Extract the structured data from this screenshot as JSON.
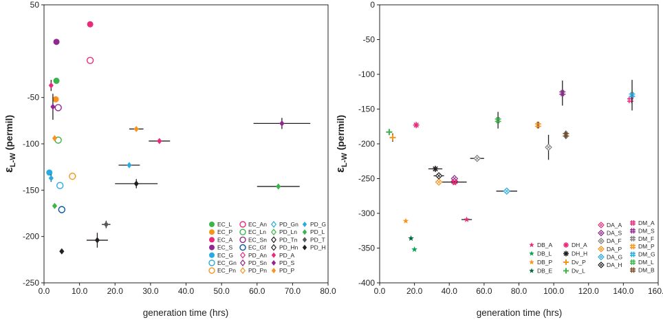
{
  "chart_data": [
    {
      "type": "scatter",
      "title": "",
      "xlabel": "generation time (hrs)",
      "ylabel_main": "ε",
      "ylabel_sub": "L-W",
      "ylabel_rest": " (permil)",
      "xlim": [
        0,
        80
      ],
      "ylim": [
        -250,
        50
      ],
      "x_ticks": [
        0,
        10,
        20,
        30,
        40,
        50,
        60,
        70,
        80
      ],
      "x_tick_labels": [
        "0.0",
        "10.0",
        "20.0",
        "30.0",
        "40.0",
        "50.0",
        "60.0",
        "70.0",
        "80.0"
      ],
      "y_ticks": [
        50,
        -50,
        -100,
        -150,
        -200,
        -250
      ],
      "y_tick_labels": [
        "50",
        "-50",
        "-100",
        "-150",
        "-200",
        "-250"
      ],
      "legend_position": "bottom-right",
      "series": [
        {
          "name": "EC_L",
          "marker": "circle",
          "color": "#39b54a",
          "points": [
            {
              "x": 3.5,
              "y": -32
            }
          ]
        },
        {
          "name": "EC_P",
          "marker": "circle",
          "color": "#f7941d",
          "points": [
            {
              "x": 3.3,
              "y": -52
            }
          ]
        },
        {
          "name": "EC_A",
          "marker": "circle",
          "color": "#ec2a7a",
          "points": [
            {
              "x": 13.0,
              "y": 29
            }
          ]
        },
        {
          "name": "EC_S",
          "marker": "circle",
          "color": "#92278f",
          "points": [
            {
              "x": 3.5,
              "y": 10
            }
          ]
        },
        {
          "name": "EC_G",
          "marker": "circle",
          "color": "#29abe2",
          "points": [
            {
              "x": 1.5,
              "y": -131
            }
          ]
        },
        {
          "name": "EC_Gn",
          "marker": "open-circle",
          "color": "#29abe2",
          "points": [
            {
              "x": 4.5,
              "y": -145
            }
          ]
        },
        {
          "name": "EC_Pn",
          "marker": "open-circle",
          "color": "#f7941d",
          "points": [
            {
              "x": 8.0,
              "y": -135
            }
          ]
        },
        {
          "name": "EC_An",
          "marker": "open-circle",
          "color": "#ec2a7a",
          "points": [
            {
              "x": 13.0,
              "y": -10
            }
          ]
        },
        {
          "name": "EC_Ln",
          "marker": "open-circle",
          "color": "#39b54a",
          "points": [
            {
              "x": 4.0,
              "y": -96
            }
          ]
        },
        {
          "name": "EC_Sn",
          "marker": "open-circle",
          "color": "#92278f",
          "points": [
            {
              "x": 4.0,
              "y": -61
            }
          ]
        },
        {
          "name": "EC_Gf",
          "marker": "open-circle",
          "color": "#0054a6",
          "points": [
            {
              "x": 5.0,
              "y": -171
            }
          ]
        },
        {
          "name": "PD_An",
          "marker": "open-diamond",
          "color": "#ec2a7a",
          "points": []
        },
        {
          "name": "PD_Sn",
          "marker": "open-diamond",
          "color": "#92278f",
          "points": []
        },
        {
          "name": "PD_Pn",
          "marker": "open-diamond",
          "color": "#f7941d",
          "points": []
        },
        {
          "name": "PD_Gn",
          "marker": "open-diamond",
          "color": "#29abe2",
          "points": []
        },
        {
          "name": "PD_Ln",
          "marker": "open-diamond",
          "color": "#39b54a",
          "points": []
        },
        {
          "name": "PD_Tn",
          "marker": "open-diamond",
          "color": "#231f20",
          "points": []
        },
        {
          "name": "PD_Hn",
          "marker": "open-diamond",
          "color": "#231f20",
          "points": []
        },
        {
          "name": "PD_A",
          "marker": "diamond",
          "color": "#ec2a7a",
          "points": [
            {
              "x": 2.0,
              "y": -37,
              "yerr": 6
            },
            {
              "x": 32.5,
              "y": -97,
              "xerr": 3
            }
          ]
        },
        {
          "name": "PD_S",
          "marker": "diamond",
          "color": "#92278f",
          "points": [
            {
              "x": 2.5,
              "y": -60,
              "yerr": 14
            },
            {
              "x": 67.0,
              "y": -78,
              "xerr": 8,
              "yerr": 6
            }
          ]
        },
        {
          "name": "PD_P",
          "marker": "diamond",
          "color": "#f7941d",
          "points": [
            {
              "x": 3.0,
              "y": -94,
              "yerr": 3
            },
            {
              "x": 26.0,
              "y": -84,
              "xerr": 2
            }
          ]
        },
        {
          "name": "PD_G",
          "marker": "diamond",
          "color": "#29abe2",
          "points": [
            {
              "x": 2.0,
              "y": -137,
              "yerr": 4
            },
            {
              "x": 24.0,
              "y": -123,
              "xerr": 3
            }
          ]
        },
        {
          "name": "PD_L",
          "marker": "diamond",
          "color": "#39b54a",
          "points": [
            {
              "x": 3.0,
              "y": -167
            },
            {
              "x": 66.0,
              "y": -146,
              "xerr": 6
            }
          ]
        },
        {
          "name": "PD_T",
          "marker": "diamond",
          "color": "#595959",
          "points": [
            {
              "x": 17.5,
              "y": -187,
              "xerr": 1.2,
              "yerr": 4
            }
          ]
        },
        {
          "name": "PD_H",
          "marker": "diamond",
          "color": "#231f20",
          "points": [
            {
              "x": 5.0,
              "y": -216
            },
            {
              "x": 26.0,
              "y": -143,
              "xerr": 6,
              "yerr": 5
            },
            {
              "x": 15.0,
              "y": -204,
              "xerr": 3,
              "yerr": 8
            }
          ]
        }
      ]
    },
    {
      "type": "scatter",
      "title": "",
      "xlabel": "generation time (hrs)",
      "ylabel_main": "ε",
      "ylabel_sub": "L-W",
      "ylabel_rest": " (permil)",
      "xlim": [
        0,
        160
      ],
      "ylim": [
        -400,
        0
      ],
      "x_ticks": [
        0,
        20,
        40,
        60,
        80,
        100,
        120,
        140,
        160
      ],
      "x_tick_labels": [
        "0.0",
        "20.0",
        "40.0",
        "60.0",
        "80.0",
        "100.0",
        "120.0",
        "140.0",
        "160.0"
      ],
      "y_ticks": [
        0,
        -50,
        -100,
        -150,
        -200,
        -250,
        -300,
        -350,
        -400
      ],
      "y_tick_labels": [
        "0",
        "-50",
        "-100",
        "-150",
        "-200",
        "-250",
        "-300",
        "-350",
        "-400"
      ],
      "legend_position": "bottom-right",
      "series": [
        {
          "name": "DB_A",
          "marker": "star",
          "color": "#ec2a7a",
          "points": [
            {
              "x": 50,
              "y": -309,
              "xerr": 3
            }
          ]
        },
        {
          "name": "DB_L",
          "marker": "star",
          "color": "#00a651",
          "points": [
            {
              "x": 20,
              "y": -352
            }
          ]
        },
        {
          "name": "DB_P",
          "marker": "star",
          "color": "#f7941d",
          "points": [
            {
              "x": 15,
              "y": -311
            }
          ]
        },
        {
          "name": "DB_E",
          "marker": "star",
          "color": "#006838",
          "points": [
            {
              "x": 18,
              "y": -336
            }
          ]
        },
        {
          "name": "DH_A",
          "marker": "asterisk",
          "color": "#ec2a7a",
          "points": [
            {
              "x": 21,
              "y": -173
            }
          ]
        },
        {
          "name": "DH_H",
          "marker": "asterisk",
          "color": "#231f20",
          "points": [
            {
              "x": 32,
              "y": -236,
              "xerr": 4
            }
          ]
        },
        {
          "name": "Dv_P",
          "marker": "plus",
          "color": "#f7941d",
          "points": [
            {
              "x": 7.5,
              "y": -191,
              "yerr": 6
            }
          ]
        },
        {
          "name": "Dv_L",
          "marker": "plus",
          "color": "#39b54a",
          "points": [
            {
              "x": 5.5,
              "y": -183,
              "yerr": 4
            }
          ]
        },
        {
          "name": "DA_A",
          "marker": "open-diamond-x",
          "color": "#ec2a7a",
          "points": [
            {
              "x": 43,
              "y": -254
            }
          ]
        },
        {
          "name": "DA_S",
          "marker": "open-diamond-x",
          "color": "#92278f",
          "points": [
            {
              "x": 43,
              "y": -250
            }
          ]
        },
        {
          "name": "DA_F",
          "marker": "open-diamond-x",
          "color": "#808080",
          "points": [
            {
              "x": 56,
              "y": -221,
              "xerr": 4
            },
            {
              "x": 97,
              "y": -205,
              "yerr": 18
            }
          ]
        },
        {
          "name": "DA_P",
          "marker": "open-diamond-x",
          "color": "#f7941d",
          "points": [
            {
              "x": 34,
              "y": -255
            }
          ]
        },
        {
          "name": "DA_G",
          "marker": "open-diamond-x",
          "color": "#29abe2",
          "points": [
            {
              "x": 73,
              "y": -268,
              "xerr": 6
            }
          ]
        },
        {
          "name": "DA_H",
          "marker": "open-diamond-x",
          "color": "#231f20",
          "points": [
            {
              "x": 34,
              "y": -246,
              "xerr": 3
            }
          ]
        },
        {
          "name": "DM_A",
          "marker": "hash",
          "color": "#ec2a7a",
          "points": [
            {
              "x": 43,
              "y": -255,
              "xerr": 7
            },
            {
              "x": 144,
              "y": -137
            }
          ]
        },
        {
          "name": "DM_S",
          "marker": "hash",
          "color": "#92278f",
          "points": [
            {
              "x": 105,
              "y": -127,
              "yerr": 18
            }
          ]
        },
        {
          "name": "DM_F",
          "marker": "hash",
          "color": "#808080",
          "points": []
        },
        {
          "name": "DM_P",
          "marker": "hash",
          "color": "#f7941d",
          "points": [
            {
              "x": 91,
              "y": -173,
              "yerr": 5
            }
          ]
        },
        {
          "name": "DM_G",
          "marker": "hash",
          "color": "#29abe2",
          "points": [
            {
              "x": 145,
              "y": -130,
              "yerr": 22
            }
          ]
        },
        {
          "name": "DM_L",
          "marker": "hash",
          "color": "#39b54a",
          "points": [
            {
              "x": 68,
              "y": -166,
              "yerr": 12
            }
          ]
        },
        {
          "name": "DM_B",
          "marker": "hash",
          "color": "#754c24",
          "points": [
            {
              "x": 107,
              "y": -187,
              "yerr": 6
            }
          ]
        }
      ]
    }
  ]
}
